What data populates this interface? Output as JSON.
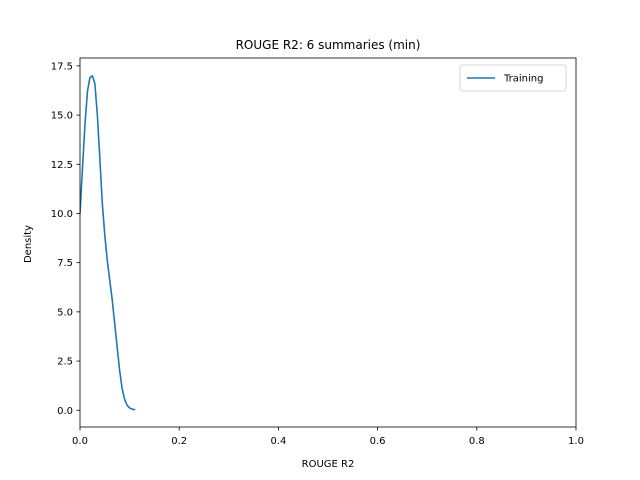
{
  "chart_data": {
    "type": "line",
    "title": "ROUGE R2: 6 summaries (min)",
    "xlabel": "ROUGE R2",
    "ylabel": "Density",
    "xlim": [
      0.0,
      1.0
    ],
    "ylim": [
      -0.85,
      17.9
    ],
    "xticks": [
      0.0,
      0.2,
      0.4,
      0.6,
      0.8,
      1.0
    ],
    "xtick_labels": [
      "0.0",
      "0.2",
      "0.4",
      "0.6",
      "0.8",
      "1.0"
    ],
    "yticks": [
      0.0,
      2.5,
      5.0,
      7.5,
      10.0,
      12.5,
      15.0,
      17.5
    ],
    "ytick_labels": [
      "0.0",
      "2.5",
      "5.0",
      "7.5",
      "10.0",
      "12.5",
      "15.0",
      "17.5"
    ],
    "grid": false,
    "legend_position": "top-right",
    "series": [
      {
        "name": "Training",
        "color": "#1f77b4",
        "x": [
          0.0,
          0.005,
          0.01,
          0.015,
          0.02,
          0.025,
          0.03,
          0.035,
          0.04,
          0.045,
          0.05,
          0.055,
          0.06,
          0.065,
          0.07,
          0.075,
          0.08,
          0.085,
          0.09,
          0.095,
          0.1,
          0.105,
          0.11
        ],
        "y": [
          10.0,
          12.3,
          14.5,
          16.2,
          16.9,
          17.0,
          16.6,
          15.0,
          12.8,
          10.5,
          8.9,
          7.6,
          6.6,
          5.6,
          4.4,
          3.2,
          2.0,
          1.1,
          0.55,
          0.25,
          0.12,
          0.06,
          0.03
        ]
      }
    ]
  }
}
